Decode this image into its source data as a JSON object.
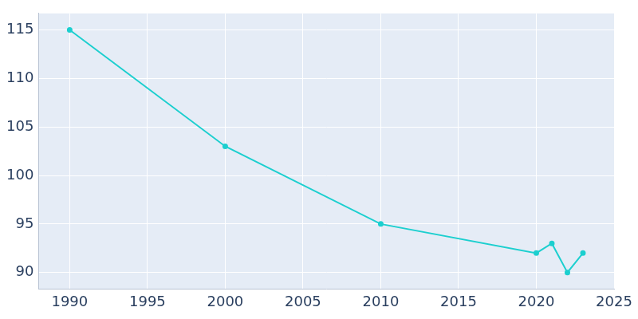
{
  "chart_data": {
    "type": "line",
    "x": [
      1990,
      2000,
      2010,
      2020,
      2021,
      2022,
      2023
    ],
    "values": [
      115,
      103,
      95,
      92,
      93,
      90,
      92
    ],
    "color": "#1ccfcf",
    "marker": "circle",
    "xlim": [
      1988,
      2025
    ],
    "xticks": [
      1990,
      1995,
      2000,
      2005,
      2010,
      2015,
      2020,
      2025
    ],
    "ylim": [
      88.3,
      116.7
    ],
    "yticks": [
      90,
      95,
      100,
      105,
      110,
      115
    ],
    "grid": true
  }
}
